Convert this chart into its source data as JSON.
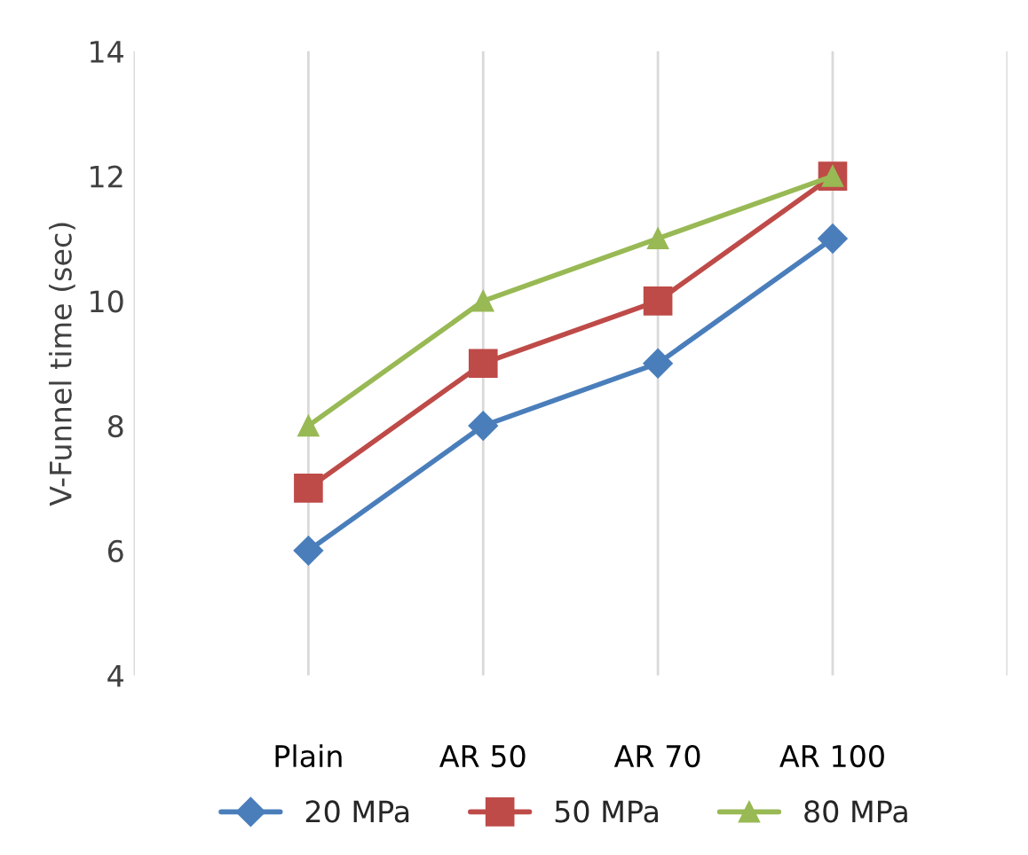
{
  "chart_data": {
    "type": "line",
    "ylabel": "V-Funnel time (sec)",
    "categories": [
      "Plain",
      "AR 50",
      "AR 70",
      "AR 100"
    ],
    "series": [
      {
        "name": "20 MPa",
        "color": "#4a7ebb",
        "marker": "diamond",
        "values": [
          6,
          8,
          9,
          11
        ]
      },
      {
        "name": "50 MPa",
        "color": "#be4b48",
        "marker": "square",
        "values": [
          7,
          9,
          10,
          12
        ]
      },
      {
        "name": "80 MPa",
        "color": "#98b954",
        "marker": "triangle",
        "values": [
          8,
          10,
          11,
          12
        ]
      }
    ],
    "ylim": [
      4,
      14
    ],
    "yticks": [
      4,
      6,
      8,
      10,
      12,
      14
    ],
    "grid": "x",
    "legend": "bottom",
    "line_style": "solid"
  }
}
